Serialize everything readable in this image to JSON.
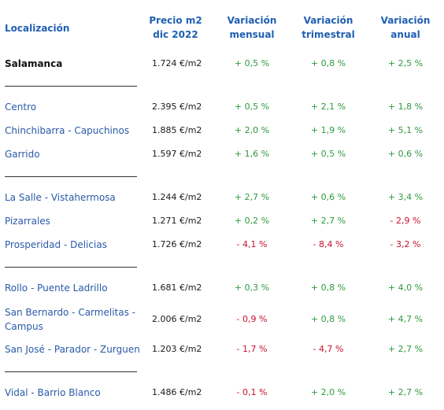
{
  "header": {
    "localizacion": "Localización",
    "precio_line1": "Precio m2",
    "precio_line2": "dic 2022",
    "mensual_line1": "Variación",
    "mensual_line2": "mensual",
    "trimestral_line1": "Variación",
    "trimestral_line2": "trimestral",
    "anual_line1": "Variación",
    "anual_line2": "anual"
  },
  "rows": [
    {
      "loc": "Salamanca",
      "price": "1.724 €/m2",
      "mensual": "+ 0,5 %",
      "trimestral": "+ 0,8 %",
      "anual": "+ 2,5 %"
    },
    {
      "loc": "Centro",
      "price": "2.395 €/m2",
      "mensual": "+ 0,5 %",
      "trimestral": "+ 2,1 %",
      "anual": "+ 1,8 %"
    },
    {
      "loc": "Chinchibarra - Capuchinos",
      "price": "1.885 €/m2",
      "mensual": "+ 2,0 %",
      "trimestral": "+ 1,9 %",
      "anual": "+ 5,1 %"
    },
    {
      "loc": "Garrido",
      "price": "1.597 €/m2",
      "mensual": "+ 1,6 %",
      "trimestral": "+ 0,5 %",
      "anual": "+ 0,6 %"
    },
    {
      "loc": "La Salle - Vistahermosa",
      "price": "1.244 €/m2",
      "mensual": "+ 2,7 %",
      "trimestral": "+ 0,6 %",
      "anual": "+ 3,4 %"
    },
    {
      "loc": "Pizarrales",
      "price": "1.271 €/m2",
      "mensual": "+ 0,2 %",
      "trimestral": "+ 2,7 %",
      "anual": "- 2,9 %"
    },
    {
      "loc": "Prosperidad - Delicias",
      "price": "1.726 €/m2",
      "mensual": "- 4,1 %",
      "trimestral": "- 8,4 %",
      "anual": "- 3,2 %"
    },
    {
      "loc": "Rollo - Puente Ladrillo",
      "price": "1.681 €/m2",
      "mensual": "+ 0,3 %",
      "trimestral": "+ 0,8 %",
      "anual": "+ 4,0 %"
    },
    {
      "loc_line1": "San Bernardo - Carmelitas -",
      "loc_line2": "Campus",
      "price": "2.006 €/m2",
      "mensual": "- 0,9 %",
      "trimestral": "+ 0,8 %",
      "anual": "+ 4,7 %"
    },
    {
      "loc": "San José - Parador - Zurguen",
      "price": "1.203 €/m2",
      "mensual": "- 1,7 %",
      "trimestral": "- 4,7 %",
      "anual": "+ 2,7 %"
    },
    {
      "loc": "Vidal - Barrio Blanco",
      "price": "1.486 €/m2",
      "mensual": "- 0,1 %",
      "trimestral": "+ 2,0 %",
      "anual": "+ 2,7 %"
    }
  ],
  "colors": {
    "header_blue": "#1f5fb4",
    "location_blue": "#2a5aa8",
    "positive_green": "#2e9a3e",
    "negative_red": "#c8102e"
  }
}
